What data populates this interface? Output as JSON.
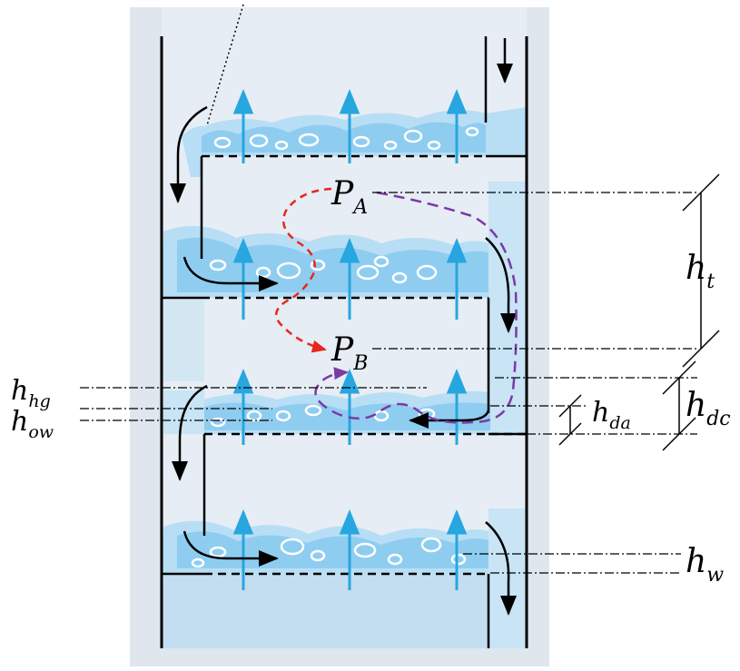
{
  "labels": {
    "pa_main": "P",
    "pa_sub": "A",
    "pb_main": "P",
    "pb_sub": "B",
    "ht_main": "h",
    "ht_sub": "t",
    "hhg_main": "h",
    "hhg_sub": "hg",
    "how_main": "h",
    "how_sub": "ow",
    "hda_main": "h",
    "hda_sub": "da",
    "hdc_main": "h",
    "hdc_sub": "dc",
    "hw_main": "h",
    "hw_sub": "w"
  },
  "colors": {
    "column_bg": "#dfe6ee",
    "liquid": "#b7def5",
    "froth": "#8fcdf0",
    "bubble": "#ffffff",
    "vapor_arrow": "#27a6df",
    "path_red": "#e8251d",
    "path_purple": "#7a3aa6",
    "line": "#000000"
  },
  "icons": [
    "vapor-up-arrow",
    "liquid-flow-arrow",
    "bubble"
  ]
}
